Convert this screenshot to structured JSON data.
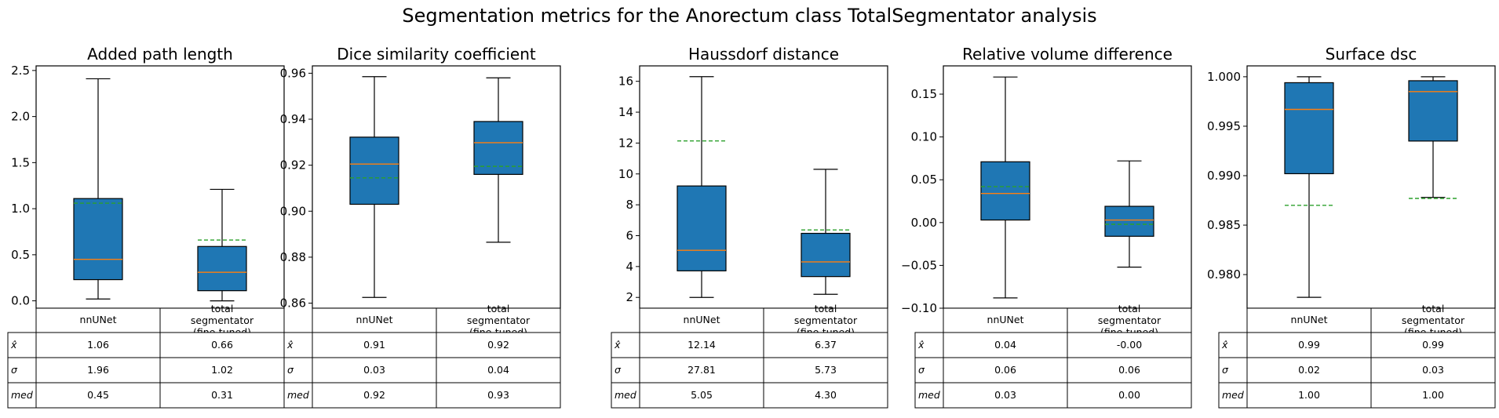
{
  "figure": {
    "suptitle": "Segmentation metrics for the Anorectum class TotalSegmentator analysis"
  },
  "colors": {
    "box_fill": "#1f77b4",
    "median_line": "#ff7f0e",
    "mean_line": "#2ca02c",
    "axes": "#000000"
  },
  "chart_data": [
    {
      "type": "box",
      "title": "Added path length",
      "categories": [
        "nnUNet",
        "total segmentator (fine-tuned)"
      ],
      "boxes": [
        {
          "whisker_low": 0.02,
          "q1": 0.23,
          "median": 0.45,
          "q3": 1.11,
          "whisker_high": 2.41,
          "mean": 1.06
        },
        {
          "whisker_low": 0.0,
          "q1": 0.11,
          "median": 0.31,
          "q3": 0.59,
          "whisker_high": 1.21,
          "mean": 0.66
        }
      ],
      "ylim": [
        -0.08,
        2.55
      ],
      "yticks": [
        {
          "v": 0.0,
          "label": "0.0"
        },
        {
          "v": 0.5,
          "label": "0.5"
        },
        {
          "v": 1.0,
          "label": "1.0"
        },
        {
          "v": 1.5,
          "label": "1.5"
        },
        {
          "v": 2.0,
          "label": "2.0"
        },
        {
          "v": 2.5,
          "label": "2.5"
        }
      ],
      "table": {
        "col_labels": [
          [
            "nnUNet"
          ],
          [
            "total",
            "segmentator",
            "(fine-tuned)"
          ]
        ],
        "row_labels": [
          "x̂",
          "σ",
          "med"
        ],
        "cells": [
          [
            "1.06",
            "0.66"
          ],
          [
            "1.96",
            "1.02"
          ],
          [
            "0.45",
            "0.31"
          ]
        ]
      }
    },
    {
      "type": "box",
      "title": "Dice similarity coefficient",
      "categories": [
        "nnUNet",
        "total segmentator (fine-tuned)"
      ],
      "boxes": [
        {
          "whisker_low": 0.8625,
          "q1": 0.903,
          "median": 0.9205,
          "q3": 0.9322,
          "whisker_high": 0.9585,
          "mean": 0.9145
        },
        {
          "whisker_low": 0.8865,
          "q1": 0.916,
          "median": 0.9298,
          "q3": 0.939,
          "whisker_high": 0.958,
          "mean": 0.9195
        }
      ],
      "ylim": [
        0.8578,
        0.9632
      ],
      "yticks": [
        {
          "v": 0.86,
          "label": "0.86"
        },
        {
          "v": 0.88,
          "label": "0.88"
        },
        {
          "v": 0.9,
          "label": "0.90"
        },
        {
          "v": 0.92,
          "label": "0.92"
        },
        {
          "v": 0.94,
          "label": "0.94"
        },
        {
          "v": 0.96,
          "label": "0.96"
        }
      ],
      "table": {
        "col_labels": [
          [
            "nnUNet"
          ],
          [
            "total",
            "segmentator",
            "(fine-tuned)"
          ]
        ],
        "row_labels": [
          "x̂",
          "σ",
          "med"
        ],
        "cells": [
          [
            "0.91",
            "0.92"
          ],
          [
            "0.03",
            "0.04"
          ],
          [
            "0.92",
            "0.93"
          ]
        ]
      }
    },
    {
      "type": "box",
      "title": "Haussdorf distance",
      "categories": [
        "nnUNet",
        "total segmentator (fine-tuned)"
      ],
      "boxes": [
        {
          "whisker_low": 2.0,
          "q1": 3.72,
          "median": 5.05,
          "q3": 9.22,
          "whisker_high": 16.3,
          "mean": 12.14
        },
        {
          "whisker_low": 2.2,
          "q1": 3.35,
          "median": 4.3,
          "q3": 6.15,
          "whisker_high": 10.3,
          "mean": 6.37
        }
      ],
      "ylim": [
        1.3,
        17.0
      ],
      "yticks": [
        {
          "v": 2,
          "label": "2"
        },
        {
          "v": 4,
          "label": "4"
        },
        {
          "v": 6,
          "label": "6"
        },
        {
          "v": 8,
          "label": "8"
        },
        {
          "v": 10,
          "label": "10"
        },
        {
          "v": 12,
          "label": "12"
        },
        {
          "v": 14,
          "label": "14"
        },
        {
          "v": 16,
          "label": "16"
        }
      ],
      "table": {
        "col_labels": [
          [
            "nnUNet"
          ],
          [
            "total",
            "segmentator",
            "(fine-tuned)"
          ]
        ],
        "row_labels": [
          "x̂",
          "σ",
          "med"
        ],
        "cells": [
          [
            "12.14",
            "6.37"
          ],
          [
            "27.81",
            "5.73"
          ],
          [
            "5.05",
            "4.30"
          ]
        ]
      }
    },
    {
      "type": "box",
      "title": "Relative volume difference",
      "categories": [
        "nnUNet",
        "total segmentator (fine-tuned)"
      ],
      "boxes": [
        {
          "whisker_low": -0.088,
          "q1": 0.003,
          "median": 0.034,
          "q3": 0.071,
          "whisker_high": 0.17,
          "mean": 0.042
        },
        {
          "whisker_low": -0.052,
          "q1": -0.016,
          "median": 0.003,
          "q3": 0.019,
          "whisker_high": 0.072,
          "mean": -0.002
        }
      ],
      "ylim": [
        -0.1,
        0.183
      ],
      "yticks": [
        {
          "v": -0.1,
          "label": "−0.10"
        },
        {
          "v": -0.05,
          "label": "−0.05"
        },
        {
          "v": 0.0,
          "label": "0.00"
        },
        {
          "v": 0.05,
          "label": "0.05"
        },
        {
          "v": 0.1,
          "label": "0.10"
        },
        {
          "v": 0.15,
          "label": "0.15"
        }
      ],
      "table": {
        "col_labels": [
          [
            "nnUNet"
          ],
          [
            "total",
            "segmentator",
            "(fine-tuned)"
          ]
        ],
        "row_labels": [
          "x̂",
          "σ",
          "med"
        ],
        "cells": [
          [
            "0.04",
            "-0.00"
          ],
          [
            "0.06",
            "0.06"
          ],
          [
            "0.03",
            "0.00"
          ]
        ]
      }
    },
    {
      "type": "box",
      "title": "Surface dsc",
      "categories": [
        "nnUNet",
        "total segmentator (fine-tuned)"
      ],
      "boxes": [
        {
          "whisker_low": 0.9777,
          "q1": 0.9902,
          "median": 0.9967,
          "q3": 0.9994,
          "whisker_high": 1.0,
          "mean": 0.987
        },
        {
          "whisker_low": 0.9878,
          "q1": 0.9935,
          "median": 0.9985,
          "q3": 0.9996,
          "whisker_high": 1.0,
          "mean": 0.9877
        }
      ],
      "ylim": [
        0.9766,
        1.0011
      ],
      "yticks": [
        {
          "v": 0.98,
          "label": "0.980"
        },
        {
          "v": 0.985,
          "label": "0.985"
        },
        {
          "v": 0.99,
          "label": "0.990"
        },
        {
          "v": 0.995,
          "label": "0.995"
        },
        {
          "v": 1.0,
          "label": "1.000"
        }
      ],
      "table": {
        "col_labels": [
          [
            "nnUNet"
          ],
          [
            "total",
            "segmentator",
            "(fine-tuned)"
          ]
        ],
        "row_labels": [
          "x̂",
          "σ",
          "med"
        ],
        "cells": [
          [
            "0.99",
            "0.99"
          ],
          [
            "0.02",
            "0.03"
          ],
          [
            "1.00",
            "1.00"
          ]
        ]
      }
    }
  ]
}
